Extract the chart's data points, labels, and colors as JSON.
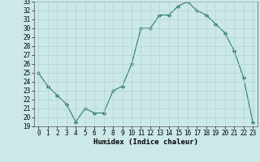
{
  "x": [
    0,
    1,
    2,
    3,
    4,
    5,
    6,
    7,
    8,
    9,
    10,
    11,
    12,
    13,
    14,
    15,
    16,
    17,
    18,
    19,
    20,
    21,
    22,
    23
  ],
  "y": [
    25.0,
    23.5,
    22.5,
    21.5,
    19.5,
    21.0,
    20.5,
    20.5,
    23.0,
    23.5,
    26.0,
    30.0,
    30.0,
    31.5,
    31.5,
    32.5,
    33.0,
    32.0,
    31.5,
    30.5,
    29.5,
    27.5,
    24.5,
    19.5
  ],
  "xlabel": "Humidex (Indice chaleur)",
  "ylim": [
    19,
    33
  ],
  "xlim": [
    -0.5,
    23.5
  ],
  "yticks": [
    19,
    20,
    21,
    22,
    23,
    24,
    25,
    26,
    27,
    28,
    29,
    30,
    31,
    32,
    33
  ],
  "xticks": [
    0,
    1,
    2,
    3,
    4,
    5,
    6,
    7,
    8,
    9,
    10,
    11,
    12,
    13,
    14,
    15,
    16,
    17,
    18,
    19,
    20,
    21,
    22,
    23
  ],
  "line_color": "#2d7a6e",
  "marker": "D",
  "marker_size": 2.2,
  "bg_color": "#cce8e8",
  "grid_color": "#b0d4d4",
  "tick_fontsize": 5.5,
  "xlabel_fontsize": 6.5
}
